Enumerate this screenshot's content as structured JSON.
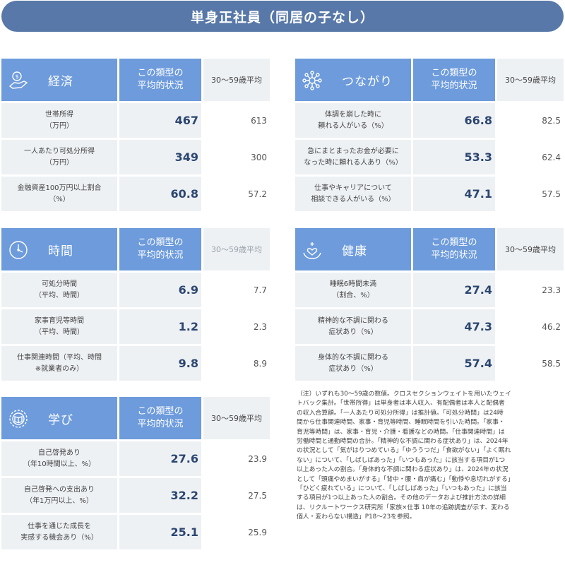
{
  "title": "単身正社員（同居の子なし）",
  "header_type_label": "この類型の\n平均的状況",
  "header_avg_label": "30〜59歳平均",
  "sections": {
    "economy": {
      "category": "経済",
      "icon": "money-hand-icon",
      "rows": [
        {
          "label": "世帯所得\n（万円）",
          "value": "467",
          "avg": "613"
        },
        {
          "label": "一人あたり可処分所得\n（万円）",
          "value": "349",
          "avg": "300"
        },
        {
          "label": "金融資産100万円以上割合\n（%）",
          "value": "60.8",
          "avg": "57.2"
        }
      ]
    },
    "connection": {
      "category": "つながり",
      "icon": "network-icon",
      "rows": [
        {
          "label": "体調を崩した時に\n頼れる人がいる（%）",
          "value": "66.8",
          "avg": "82.5"
        },
        {
          "label": "急にまとまったお金が必要に\nなった時に頼れる人あり（%）",
          "value": "53.3",
          "avg": "62.4"
        },
        {
          "label": "仕事やキャリアについて\n相談できる人がいる（%）",
          "value": "47.1",
          "avg": "57.5"
        }
      ]
    },
    "time": {
      "category": "時間",
      "icon": "clock-icon",
      "rows": [
        {
          "label": "可処分時間\n（平均、時間）",
          "value": "6.9",
          "avg": "7.7"
        },
        {
          "label": "家事育児等時間\n（平均、時間）",
          "value": "1.2",
          "avg": "2.3"
        },
        {
          "label": "仕事関連時間（平均、時間\n※就業者のみ）",
          "value": "9.8",
          "avg": "8.9"
        }
      ]
    },
    "health": {
      "category": "健康",
      "icon": "heart-hands-icon",
      "rows": [
        {
          "label": "睡眠6時間未満\n（割合、%）",
          "value": "27.4",
          "avg": "23.3"
        },
        {
          "label": "精神的な不調に関わる\n症状あり（%）",
          "value": "47.3",
          "avg": "46.2"
        },
        {
          "label": "身体的な不調に関わる\n症状あり（%）",
          "value": "57.4",
          "avg": "58.5"
        }
      ]
    },
    "learning": {
      "category": "学び",
      "icon": "book-badge-icon",
      "rows": [
        {
          "label": "自己啓発あり\n（年10時間以上、%）",
          "value": "27.6",
          "avg": "23.9"
        },
        {
          "label": "自己啓発への支出あり\n（年1万円以上、%）",
          "value": "32.2",
          "avg": "27.5"
        },
        {
          "label": "仕事を通じた成長を\n実感する機会あり（%）",
          "value": "25.1",
          "avg": "25.9"
        }
      ]
    }
  },
  "note": "（注）いずれも30〜59歳の数値。クロスセクションウェイトを用いたウェイ\nトバック集計。「世帯所得」は単身者は本人収入、有配偶者は本人と配偶者\nの収入合算額。「一人あたり可処分所得」は推計値。「可処分時間」は24時\n間から仕事関連時間、家事・育児等時間、睡眠時間を引いた時間。「家事・\n育児等時間」は、家事・育児・介護・看護などの時間。「仕事関連時間」は\n労働時間と通勤時間の合計。「精神的な不調に関わる症状あり」は、2024年\nの状況として「気がはりつめている」「ゆううつだ」「食欲がない」「よく眠れ\nない」について、「しばしばあった」「いつもあった」に該当する項目が1つ\n以上あった人の割合。「身体的な不調に関わる症状あり」は、2024年の状況\nとして「頭痛やめまいがする」「背中・腰・肩が痛む」「動悸や息切れがする」\n「ひどく疲れている」について、「しばしばあった」「いつもあった」に該当\nする項目が1つ以上あった人の割合。その他のデータおよび推計方法の詳細\nは、リクルートワークス研究所「家族×仕事 10年の追跡調査が示す、変わる\n個人・変わらない構造」P18〜23を参照。"
}
